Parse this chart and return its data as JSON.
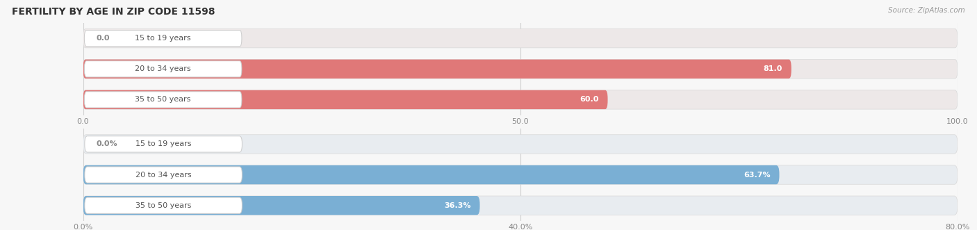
{
  "title": "FERTILITY BY AGE IN ZIP CODE 11598",
  "source": "Source: ZipAtlas.com",
  "top_chart": {
    "categories": [
      "15 to 19 years",
      "20 to 34 years",
      "35 to 50 years"
    ],
    "values": [
      0.0,
      81.0,
      60.0
    ],
    "xlim": [
      0,
      100
    ],
    "xticks": [
      0.0,
      50.0,
      100.0
    ],
    "bar_color": "#e07878",
    "bar_bg_color": "#ede8e8",
    "value_labels": [
      "0.0",
      "81.0",
      "60.0"
    ],
    "value_inside": [
      false,
      true,
      true
    ]
  },
  "bottom_chart": {
    "categories": [
      "15 to 19 years",
      "20 to 34 years",
      "35 to 50 years"
    ],
    "values": [
      0.0,
      63.7,
      36.3
    ],
    "xlim": [
      0,
      80
    ],
    "xticks": [
      0.0,
      40.0,
      80.0
    ],
    "xtick_labels": [
      "0.0%",
      "40.0%",
      "80.0%"
    ],
    "bar_color": "#7aafd4",
    "bar_bg_color": "#e8ecf0",
    "value_labels": [
      "0.0%",
      "63.7%",
      "36.3%"
    ],
    "value_inside": [
      false,
      true,
      true
    ]
  },
  "background_color": "#f7f7f7",
  "label_box_color": "#ffffff",
  "label_box_edge_color": "#dddddd",
  "bar_height": 0.62,
  "label_fontsize": 8,
  "tick_fontsize": 8,
  "title_fontsize": 10,
  "category_fontsize": 8,
  "cat_label_color": "#555555",
  "val_label_color_inside": "#ffffff",
  "val_label_color_outside": "#888888"
}
